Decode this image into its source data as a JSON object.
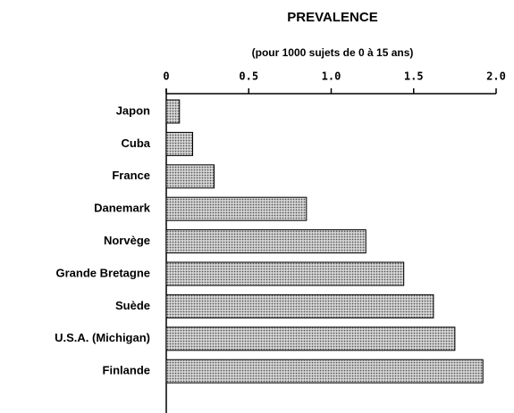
{
  "chart_data": {
    "type": "bar",
    "orientation": "horizontal",
    "title": "PREVALENCE",
    "subtitle": "(pour 1000 sujets de 0 à 15 ans)",
    "categories": [
      "Japon",
      "Cuba",
      "France",
      "Danemark",
      "Norvège",
      "Grande Bretagne",
      "Suède",
      "U.S.A. (Michigan)",
      "Finlande"
    ],
    "values": [
      0.08,
      0.16,
      0.29,
      0.85,
      1.21,
      1.44,
      1.62,
      1.75,
      1.92
    ],
    "color": "#555555",
    "xlim": [
      0,
      2
    ],
    "xticks": [
      0,
      0.5,
      {
        "value": 1,
        "label": "1.0"
      },
      1.5,
      {
        "value": 2,
        "label": "2.0"
      }
    ]
  }
}
